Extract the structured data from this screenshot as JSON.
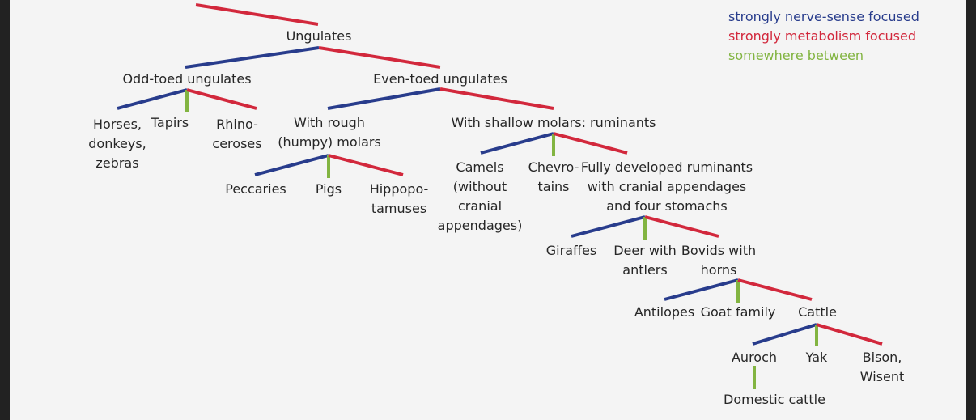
{
  "legend": [
    {
      "text": "strongly nerve-sense focused",
      "color": "#283c8c"
    },
    {
      "text": "strongly metabolism focused",
      "color": "#d2283c"
    },
    {
      "text": "somewhere between",
      "color": "#82b441"
    }
  ],
  "colors": {
    "blue": "#283c8c",
    "red": "#d2283c",
    "green": "#82b441"
  },
  "nodes": {
    "ungulates": "Ungulates",
    "odd_toed": "Odd-toed ungulates",
    "even_toed": "Even-toed ungulates",
    "horses": "Horses,\ndonkeys,\nzebras",
    "tapirs": "Tapirs",
    "rhinoceroses": "Rhino-\nceroses",
    "rough_molars": "With rough\n(humpy) molars",
    "ruminants": "With shallow molars: ruminants",
    "peccaries": "Peccaries",
    "pigs": "Pigs",
    "hippos": "Hippopo-\ntamuses",
    "camels": "Camels\n(without\ncranial\nappendages)",
    "chevrotains": "Chevro-\ntains",
    "full_ruminants": "Fully developed ruminants\nwith cranial appendages\nand four stomachs",
    "giraffes": "Giraffes",
    "deer": "Deer with\nantlers",
    "bovids": "Bovids with\nhorns",
    "antilopes": "Antilopes",
    "goat": "Goat family",
    "cattle": "Cattle",
    "auroch": "Auroch",
    "yak": "Yak",
    "bison": "Bison,\nWisent",
    "domestic": "Domestic cattle"
  }
}
